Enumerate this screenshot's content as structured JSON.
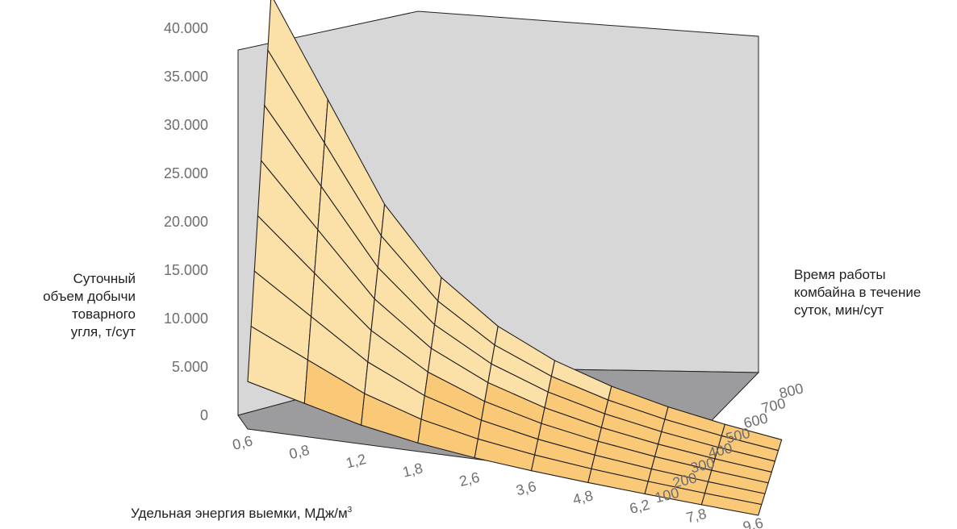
{
  "chart_data": {
    "type": "surface3d",
    "title": "",
    "ylabel": [
      "Суточный",
      "объем добычи",
      "товарного",
      "угля, т/сут"
    ],
    "zlabel": [
      "Время работы",
      "комбайна в течение",
      "суток, мин/сут"
    ],
    "xlabel": {
      "text": "Удельная энергия выемки, МДж/м",
      "superscript": "3"
    },
    "x_categories": [
      "0,6",
      "0,8",
      "1,2",
      "1,8",
      "2,6",
      "3,6",
      "4,8",
      "6,2",
      "7,8",
      "9,6"
    ],
    "z_ticks": [
      "100",
      "200",
      "300",
      "400",
      "500",
      "600",
      "700",
      "800"
    ],
    "y_ticks": [
      "0",
      "5.000",
      "10.000",
      "15.000",
      "20.000",
      "25.000",
      "30.000",
      "35.000",
      "40.000"
    ],
    "ylim": [
      0,
      40000
    ],
    "z_values": [
      100,
      200,
      300,
      400,
      500,
      600,
      700,
      800
    ],
    "surface_values": [
      [
        4900,
        9800,
        14700,
        19600,
        24500,
        29400,
        34300,
        39200
      ],
      [
        3675,
        7350,
        11025,
        14700,
        18375,
        22050,
        25725,
        29400
      ],
      [
        2450,
        4900,
        7350,
        9800,
        12250,
        14700,
        17150,
        19600
      ],
      [
        1633,
        3267,
        4900,
        6533,
        8167,
        9800,
        11433,
        13067
      ],
      [
        1131,
        2262,
        3392,
        4523,
        5654,
        6785,
        7915,
        9046
      ],
      [
        817,
        1633,
        2450,
        3267,
        4083,
        4900,
        5717,
        6533
      ],
      [
        613,
        1225,
        1838,
        2450,
        3063,
        3675,
        4288,
        4900
      ],
      [
        474,
        948,
        1423,
        1897,
        2371,
        2845,
        3319,
        3794
      ],
      [
        377,
        754,
        1131,
        1508,
        1885,
        2262,
        2638,
        3015
      ],
      [
        306,
        613,
        919,
        1225,
        1531,
        1838,
        2144,
        2450
      ]
    ],
    "color_bands": [
      {
        "from": 0,
        "to": 5000,
        "color": "#f9c978"
      },
      {
        "from": 5000,
        "to": 35000,
        "color": "#fbe0a8"
      },
      {
        "from": 35000,
        "to": 40000,
        "color": "#f6b53a"
      }
    ],
    "grid": true
  }
}
